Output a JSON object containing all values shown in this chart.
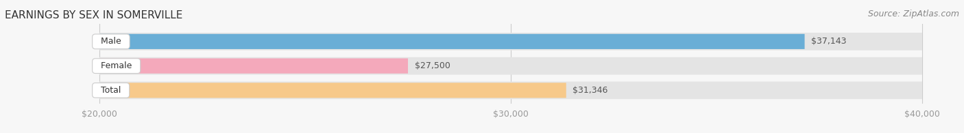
{
  "title": "EARNINGS BY SEX IN SOMERVILLE",
  "source": "Source: ZipAtlas.com",
  "categories": [
    "Male",
    "Female",
    "Total"
  ],
  "values": [
    37143,
    27500,
    31346
  ],
  "bar_colors": [
    "#6aaed6",
    "#f4a9bb",
    "#f7c98a"
  ],
  "bar_labels": [
    "$37,143",
    "$27,500",
    "$31,346"
  ],
  "xmin": 20000,
  "xmax": 40000,
  "xticks": [
    20000,
    30000,
    40000
  ],
  "xtick_labels": [
    "$20,000",
    "$30,000",
    "$40,000"
  ],
  "background_color": "#f7f7f7",
  "bar_bg_color": "#e4e4e4",
  "title_fontsize": 11,
  "source_fontsize": 9,
  "label_fontsize": 9,
  "tick_fontsize": 9
}
